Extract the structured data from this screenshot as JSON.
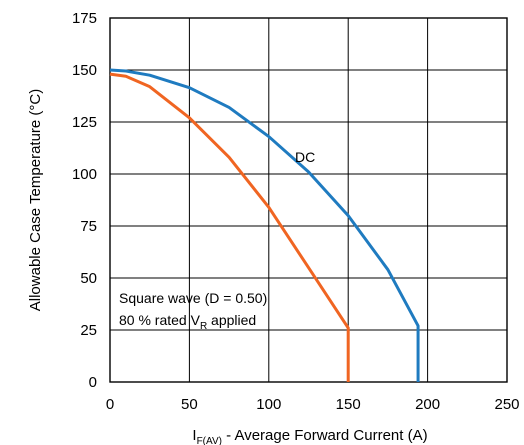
{
  "chart_data": {
    "type": "line",
    "xlabel": "I",
    "xlabel_sub": "F(AV)",
    "xlabel_rest": " - Average Forward Current (A)",
    "ylabel": "Allowable Case Temperature (°C)",
    "xlim": [
      0,
      250
    ],
    "ylim": [
      0,
      175
    ],
    "xticks": [
      0,
      50,
      100,
      150,
      200,
      250
    ],
    "yticks": [
      0,
      25,
      50,
      75,
      100,
      125,
      150,
      175
    ],
    "xtick_labels": [
      "0",
      "50",
      "100",
      "150",
      "200",
      "250"
    ],
    "ytick_labels": [
      "0",
      "25",
      "50",
      "75",
      "100",
      "125",
      "150",
      "175"
    ],
    "grid": true,
    "series": [
      {
        "name": "DC",
        "color": "#1f7bc0",
        "points": [
          [
            0,
            150
          ],
          [
            10,
            149.5
          ],
          [
            25,
            147.5
          ],
          [
            50,
            141.5
          ],
          [
            75,
            132
          ],
          [
            100,
            118
          ],
          [
            125,
            101
          ],
          [
            150,
            80
          ],
          [
            175,
            54
          ],
          [
            194,
            27
          ],
          [
            194,
            0
          ]
        ]
      },
      {
        "name": "",
        "color": "#f06522",
        "points": [
          [
            0,
            148
          ],
          [
            10,
            147
          ],
          [
            25,
            142
          ],
          [
            50,
            127
          ],
          [
            75,
            108
          ],
          [
            100,
            84
          ],
          [
            125,
            55
          ],
          [
            150,
            26
          ],
          [
            150,
            0
          ]
        ]
      }
    ],
    "annotations": {
      "dc_label": "DC",
      "square_line1": "Square wave (D = 0.50)",
      "square_line2a": "80 % rated V",
      "square_line2_sub": "R",
      "square_line2b": " applied"
    }
  }
}
